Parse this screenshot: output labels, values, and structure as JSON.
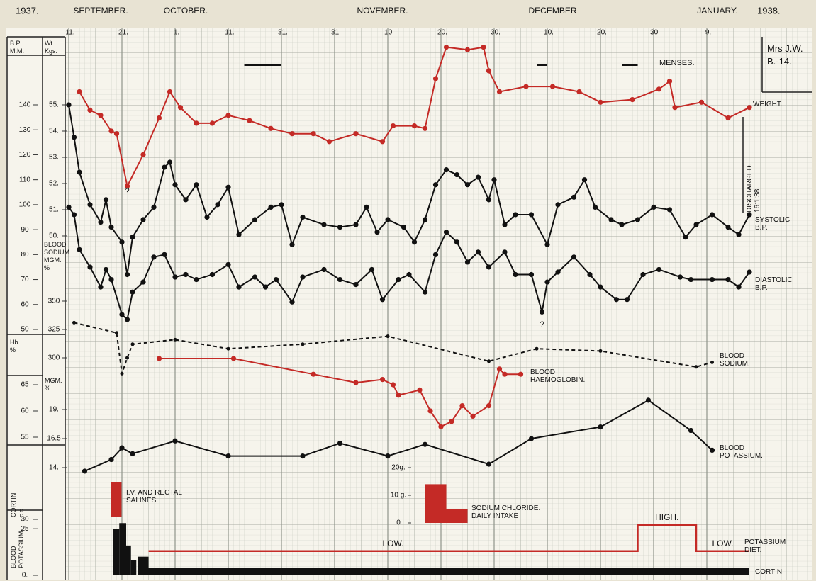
{
  "chart_data": {
    "type": "line",
    "year_start": "1937.",
    "year_end": "1938.",
    "months": [
      {
        "label": "SEPTEMBER.",
        "x": 6
      },
      {
        "label": "OCTOBER.",
        "x": 22
      },
      {
        "label": "NOVEMBER.",
        "x": 59
      },
      {
        "label": "DECEMBER",
        "x": 91
      },
      {
        "label": "JANUARY.",
        "x": 122
      }
    ],
    "xlim": [
      0,
      128
    ],
    "xticks": [
      {
        "value": 0,
        "label": "11."
      },
      {
        "value": 10,
        "label": "21."
      },
      {
        "value": 20,
        "label": "1."
      },
      {
        "value": 30,
        "label": "11."
      },
      {
        "value": 40,
        "label": "31."
      },
      {
        "value": 50,
        "label": "31."
      },
      {
        "value": 60,
        "label": "10."
      },
      {
        "value": 70,
        "label": "20."
      },
      {
        "value": 80,
        "label": "30."
      },
      {
        "value": 90,
        "label": "10."
      },
      {
        "value": 100,
        "label": "20."
      },
      {
        "value": 110,
        "label": "30."
      },
      {
        "value": 120,
        "label": "9."
      }
    ],
    "grid": true,
    "axes": {
      "bp": {
        "label": "B.P.\nM.M.",
        "ylim": [
          50,
          140
        ],
        "yticks": [
          140,
          130,
          120,
          110,
          100,
          90,
          80,
          70,
          60,
          50
        ]
      },
      "weight": {
        "label": "Wt.\nKgs.",
        "ylim": [
          50,
          55
        ],
        "yticks": [
          {
            "value": 55,
            "label": "55."
          },
          {
            "value": 54,
            "label": "54."
          },
          {
            "value": 53,
            "label": "53."
          },
          {
            "value": 52,
            "label": "52."
          },
          {
            "value": 51,
            "label": "51."
          },
          {
            "value": 50,
            "label": "50."
          }
        ]
      },
      "sodium": {
        "label": "BLOOD\nSODIUM.\nMGM.\n%",
        "ylim": [
          300,
          350
        ],
        "yticks": [
          350,
          325,
          300
        ]
      },
      "hb": {
        "label": "Hb.\n%",
        "ylim": [
          55,
          65
        ],
        "yticks": [
          65,
          60,
          55
        ]
      },
      "potassium": {
        "label": "MGM.\n%",
        "ylim": [
          14,
          19
        ],
        "yticks": [
          {
            "value": 19,
            "label": "19."
          },
          16.5,
          {
            "value": 14,
            "label": "14."
          }
        ]
      },
      "diet": {
        "label": "BLOOD\nPOTASSIUM.",
        "ylim": [
          0,
          30
        ],
        "yticks": [
          30,
          25,
          {
            "value": 0,
            "label": "0."
          }
        ]
      },
      "cortin": {
        "label": "CORTIN.\nc.c."
      },
      "salt": {
        "ylim": [
          0,
          20
        ],
        "yticks": [
          {
            "value": 20,
            "label": "20g."
          },
          {
            "value": 10,
            "label": "10 g."
          },
          0
        ]
      }
    },
    "series": [
      {
        "name": "WEIGHT.",
        "color": "#c42a26",
        "axis": "weight",
        "dashed": false,
        "x": [
          2,
          4,
          6,
          8,
          9,
          11,
          14,
          17,
          19,
          21,
          24,
          27,
          30,
          34,
          38,
          42,
          46,
          49,
          54,
          59,
          61,
          65,
          67,
          69,
          71,
          75,
          78,
          79,
          81,
          86,
          91,
          96,
          100,
          106,
          111,
          113,
          114,
          119,
          124,
          128
        ],
        "values": [
          55.5,
          54.8,
          54.6,
          54.0,
          53.9,
          51.9,
          53.1,
          54.5,
          55.5,
          54.9,
          54.3,
          54.3,
          54.6,
          54.4,
          54.1,
          53.9,
          53.9,
          53.6,
          53.9,
          53.6,
          54.2,
          54.2,
          54.1,
          56.0,
          57.2,
          57.1,
          57.2,
          56.3,
          55.5,
          55.7,
          55.7,
          55.5,
          55.1,
          55.2,
          55.6,
          55.9,
          54.9,
          55.1,
          54.5,
          54.9
        ]
      },
      {
        "name": "SYSTOLIC\nB.P.",
        "color": "#111111",
        "axis": "bp",
        "dashed": false,
        "x": [
          0,
          1,
          2,
          4,
          6,
          7,
          8,
          10,
          11,
          12,
          14,
          16,
          18,
          19,
          20,
          22,
          24,
          26,
          28,
          30,
          32,
          35,
          38,
          40,
          42,
          44,
          48,
          51,
          54,
          56,
          58,
          60,
          63,
          65,
          67,
          69,
          71,
          73,
          75,
          77,
          79,
          80,
          82,
          84,
          87,
          90,
          92,
          95,
          97,
          99,
          102,
          104,
          107,
          110,
          113,
          116,
          118,
          121,
          124,
          126,
          128
        ],
        "values": [
          140,
          127,
          113,
          100,
          93,
          102,
          91,
          85,
          72,
          87,
          94,
          99,
          115,
          117,
          108,
          102,
          108,
          95,
          100,
          107,
          88,
          94,
          99,
          100,
          84,
          95,
          92,
          91,
          92,
          99,
          89,
          94,
          91,
          85,
          94,
          108,
          114,
          112,
          108,
          111,
          102,
          110,
          92,
          96,
          96,
          84,
          100,
          103,
          110,
          99,
          94,
          92,
          94,
          99,
          98,
          87,
          92,
          96,
          91,
          88,
          96
        ]
      },
      {
        "name": "DIASTOLIC\nB.P.",
        "color": "#111111",
        "axis": "bp",
        "dashed": false,
        "x": [
          0,
          1,
          2,
          4,
          6,
          7,
          8,
          10,
          11,
          12,
          14,
          16,
          18,
          20,
          22,
          24,
          27,
          30,
          32,
          35,
          37,
          39,
          42,
          44,
          48,
          51,
          54,
          57,
          59,
          62,
          64,
          67,
          69,
          71,
          73,
          75,
          77,
          79,
          82,
          84,
          87,
          89,
          90,
          92,
          95,
          98,
          100,
          103,
          105,
          108,
          111,
          115,
          117,
          121,
          124,
          126,
          128
        ],
        "values": [
          99,
          96,
          82,
          75,
          67,
          74,
          70,
          56,
          54,
          65,
          69,
          79,
          80,
          71,
          72,
          70,
          72,
          76,
          67,
          71,
          67,
          70,
          61,
          71,
          74,
          70,
          68,
          74,
          62,
          70,
          72,
          65,
          80,
          89,
          85,
          77,
          81,
          75,
          81,
          72,
          72,
          57,
          69,
          73,
          79,
          72,
          67,
          62,
          62,
          72,
          74,
          71,
          70,
          70,
          70,
          67,
          73
        ]
      },
      {
        "name": "BLOOD\nSODIUM.",
        "color": "#111111",
        "axis": "sodium",
        "dashed": true,
        "x": [
          1,
          9,
          10,
          11,
          12,
          20,
          30,
          44,
          60,
          79,
          88,
          100,
          118,
          121
        ],
        "values": [
          331,
          322,
          286,
          300,
          312,
          316,
          308,
          312,
          319,
          297,
          308,
          306,
          292,
          296
        ]
      },
      {
        "name": "BLOOD\nHAEMOGLOBIN.",
        "color": "#c42a26",
        "axis": "hb",
        "dashed": false,
        "x": [
          17,
          31,
          46,
          54,
          59,
          61,
          62,
          66,
          68,
          70,
          72,
          74,
          76,
          79,
          81,
          82,
          85
        ],
        "values": [
          70,
          70,
          67,
          65.4,
          66,
          65,
          63,
          64,
          60,
          57,
          58,
          61,
          59,
          61,
          68,
          67,
          67
        ]
      },
      {
        "name": "BLOOD\nPOTASSIUM.",
        "color": "#111111",
        "axis": "potassium",
        "dashed": false,
        "x": [
          3,
          8,
          10,
          12,
          20,
          30,
          44,
          51,
          60,
          67,
          79,
          87,
          100,
          109,
          117,
          121
        ],
        "values": [
          13.7,
          14.7,
          15.7,
          15.2,
          16.3,
          15.0,
          15.0,
          16.1,
          15.0,
          16.0,
          14.3,
          16.5,
          17.5,
          19.8,
          17.2,
          15.5
        ]
      }
    ],
    "salt": {
      "name": "SODIUM CHLORIDE.\nDAILY INTAKE",
      "color": "#c42a26",
      "axis": "salt",
      "x": [
        [
          67,
          71
        ],
        [
          71,
          75
        ]
      ],
      "values": [
        14,
        5
      ]
    },
    "cortin": {
      "name": "CORTIN.",
      "color": "#111111",
      "axis": "diet",
      "x": [
        [
          8.4,
          9.5
        ],
        [
          9.5,
          10.8
        ],
        [
          10.8,
          11.7
        ],
        [
          11.7,
          12.7
        ],
        [
          13,
          15
        ],
        [
          15,
          128
        ]
      ],
      "values": [
        25,
        28,
        16,
        8,
        10,
        4
      ]
    },
    "diet": {
      "name": "POTASSIUM\nDIET.",
      "color": "#c42a26",
      "axis": "diet",
      "x": [
        [
          15,
          107
        ],
        [
          107,
          118
        ],
        [
          118,
          128
        ]
      ],
      "values": [
        13,
        27,
        13
      ],
      "labels": [
        "LOW.",
        "HIGH.",
        "LOW."
      ]
    },
    "menses": {
      "label": "MENSES.",
      "x": [
        [
          33,
          40
        ],
        [
          88,
          90
        ],
        [
          104,
          107
        ]
      ]
    },
    "patient": "Mrs J.W.\nB.-14.",
    "discharged": "DISCHARGED.\n16:1:38.",
    "salines": "I.V. AND RECTAL\nSALINES.",
    "query_marks": [
      {
        "label": "?",
        "x": 11
      },
      {
        "label": "?",
        "x": 89
      }
    ]
  }
}
